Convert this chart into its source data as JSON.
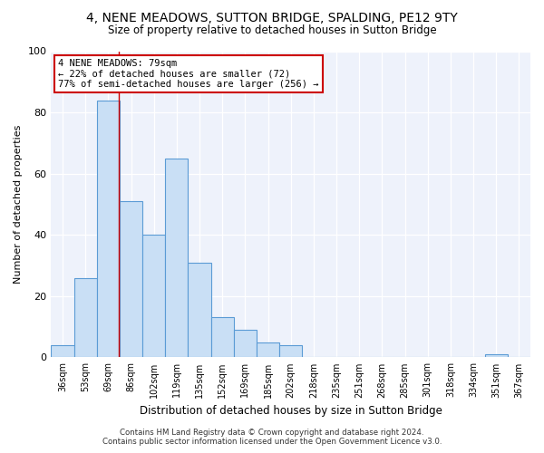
{
  "title": "4, NENE MEADOWS, SUTTON BRIDGE, SPALDING, PE12 9TY",
  "subtitle": "Size of property relative to detached houses in Sutton Bridge",
  "xlabel": "Distribution of detached houses by size in Sutton Bridge",
  "ylabel": "Number of detached properties",
  "categories": [
    "36sqm",
    "53sqm",
    "69sqm",
    "86sqm",
    "102sqm",
    "119sqm",
    "135sqm",
    "152sqm",
    "169sqm",
    "185sqm",
    "202sqm",
    "218sqm",
    "235sqm",
    "251sqm",
    "268sqm",
    "285sqm",
    "301sqm",
    "318sqm",
    "334sqm",
    "351sqm",
    "367sqm"
  ],
  "bar_values": [
    4,
    26,
    84,
    51,
    40,
    65,
    31,
    13,
    9,
    5,
    4,
    0,
    0,
    0,
    0,
    0,
    0,
    0,
    0,
    1,
    0
  ],
  "bar_color": "#c9dff5",
  "bar_edge_color": "#5b9bd5",
  "red_line_x": 2.45,
  "annotation_text": "4 NENE MEADOWS: 79sqm\n← 22% of detached houses are smaller (72)\n77% of semi-detached houses are larger (256) →",
  "annotation_box_color": "#ffffff",
  "annotation_border_color": "#cc0000",
  "footer1": "Contains HM Land Registry data © Crown copyright and database right 2024.",
  "footer2": "Contains public sector information licensed under the Open Government Licence v3.0.",
  "bg_color": "#eef2fb",
  "ylim": [
    0,
    100
  ],
  "yticks": [
    0,
    20,
    40,
    60,
    80,
    100
  ]
}
